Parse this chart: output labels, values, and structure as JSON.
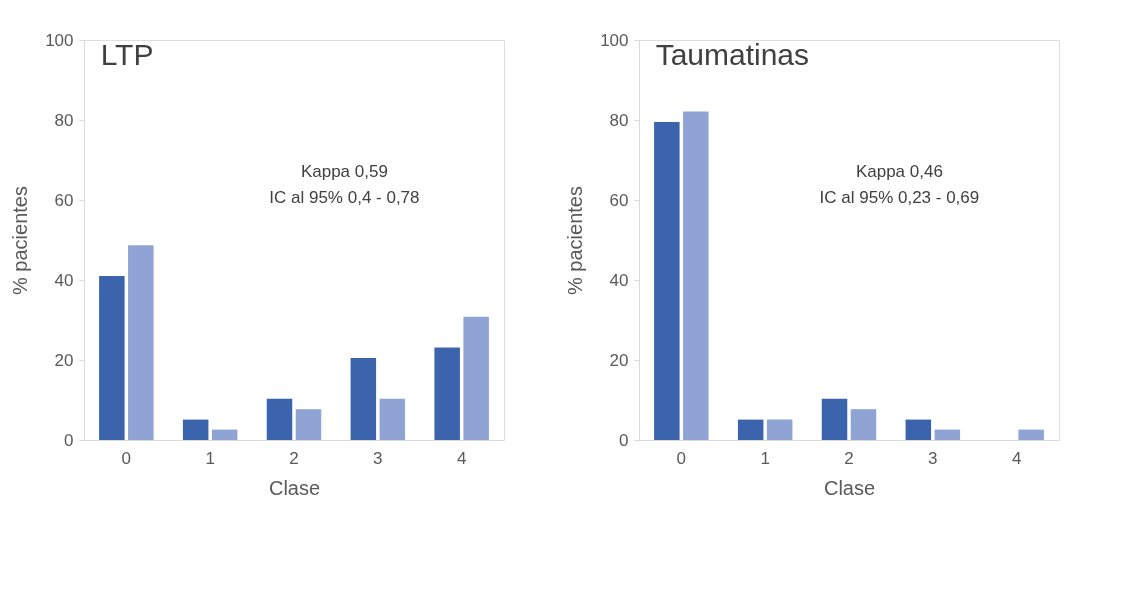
{
  "chart_data": [
    {
      "type": "bar",
      "title": "LTP",
      "xlabel": "Clase",
      "ylabel": "% pacientes",
      "categories": [
        "0",
        "1",
        "2",
        "3",
        "4"
      ],
      "series": [
        {
          "color": "#3c64ad",
          "values": [
            41,
            5.1,
            10.3,
            20.5,
            23.1
          ]
        },
        {
          "color": "#8fa3d4",
          "values": [
            48.7,
            2.6,
            7.7,
            10.3,
            30.8
          ]
        }
      ],
      "ylim": [
        0,
        100
      ],
      "yticks": [
        0,
        20,
        40,
        60,
        80,
        100
      ],
      "grid": false,
      "annotations": [
        "Kappa 0,59",
        "IC al 95% 0,4 - 0,78"
      ]
    },
    {
      "type": "bar",
      "title": "Taumatinas",
      "xlabel": "Clase",
      "ylabel": "% pacientes",
      "categories": [
        "0",
        "1",
        "2",
        "3",
        "4"
      ],
      "series": [
        {
          "color": "#3c64ad",
          "values": [
            79.5,
            5.1,
            10.3,
            5.1,
            0
          ]
        },
        {
          "color": "#8fa3d4",
          "values": [
            82.1,
            5.1,
            7.7,
            2.6,
            2.6
          ]
        }
      ],
      "ylim": [
        0,
        100
      ],
      "yticks": [
        0,
        20,
        40,
        60,
        80,
        100
      ],
      "grid": false,
      "annotations": [
        "Kappa 0,46",
        "IC al 95% 0,23 - 0,69"
      ]
    }
  ]
}
